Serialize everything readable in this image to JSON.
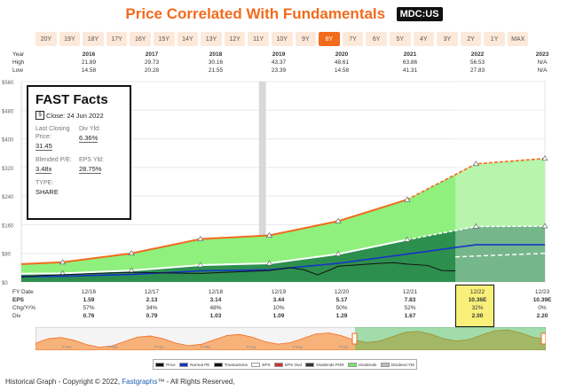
{
  "title": "Price Correlated With Fundamentals",
  "ticker": "MDC:US",
  "periods": [
    "20Y",
    "19Y",
    "18Y",
    "17Y",
    "16Y",
    "15Y",
    "14Y",
    "13Y",
    "12Y",
    "11Y",
    "10Y",
    "9Y",
    "8Y",
    "7Y",
    "6Y",
    "5Y",
    "4Y",
    "3Y",
    "2Y",
    "1Y",
    "MAX"
  ],
  "active_period": "8Y",
  "highlow": {
    "year_label": "Year",
    "high_label": "High",
    "low_label": "Low",
    "years": [
      "2016",
      "2017",
      "2018",
      "2019",
      "2020",
      "2021",
      "2022",
      "2023"
    ],
    "high": [
      "21.89",
      "29.73",
      "30.16",
      "43.37",
      "48.61",
      "63.86",
      "56.53",
      "N/A"
    ],
    "low": [
      "14.58",
      "20.28",
      "21.55",
      "23.39",
      "14.58",
      "41.31",
      "27.83",
      "N/A"
    ]
  },
  "facts": {
    "heading": "FAST Facts",
    "close": "Close: 24 Jun 2022",
    "last_price_label": "Last Closing Price:",
    "last_price": "31.45",
    "div_yld_label": "Div Yld:",
    "div_yld": "6.36%",
    "pe_label": "Blended P/E:",
    "pe": "3.48x",
    "eps_yld_label": "EPS Yld:",
    "eps_yld": "28.75%",
    "type_label": "TYPE:",
    "type": "SHARE"
  },
  "stats": {
    "fy_label": "FY Date",
    "eps_label": "EPS",
    "chg_label": "Chg/Yr%",
    "div_label": "Div",
    "dates": [
      "12/16",
      "12/17",
      "12/18",
      "12/19",
      "12/20",
      "12/21",
      "12/22",
      "12/23"
    ],
    "eps": [
      "1.59",
      "2.13",
      "3.14",
      "3.44",
      "5.17",
      "7.83",
      "10.36E",
      "10.39E"
    ],
    "chg": [
      "57%",
      "34%",
      "48%",
      "10%",
      "50%",
      "52%",
      "32%",
      "0%"
    ],
    "div": [
      "0.76",
      "0.79",
      "1.03",
      "1.09",
      "1.29",
      "1.67",
      "2.00",
      "2.20"
    ]
  },
  "legend": [
    "Price",
    "Normal PE",
    "Transactions",
    "EPS",
    "EPS Ovd",
    "Dividends POR",
    "Dividends",
    "Dividend YM"
  ],
  "nav_labels": [
    "FY91",
    "FY96",
    "FY01",
    "FY06",
    "FY11",
    "FY16",
    "FY21"
  ],
  "footer": {
    "prefix": "Historical Graph - Copyright © 2022,",
    "link": "Fastgraphs",
    "suffix": "™ - All Rights Reserved,"
  },
  "colors": {
    "accent": "#f26b1d",
    "eps_fill": "#1e8b45",
    "div_fill": "#7be36c",
    "price": "#111111",
    "normal_pe": "#1433c8"
  },
  "chart_data": {
    "type": "area",
    "y_ticks": [
      "$560",
      "$480",
      "$400",
      "$320",
      "$240",
      "$160",
      "$80",
      "$0"
    ],
    "ylim": [
      0,
      560
    ],
    "x": [
      2015.4,
      2016,
      2017,
      2018,
      2019,
      2020,
      2021,
      2022,
      2023
    ],
    "eps_valuation": [
      23,
      24,
      32,
      47,
      52,
      78,
      118,
      155,
      156
    ],
    "dividend_valuation": [
      50,
      55,
      80,
      120,
      130,
      170,
      230,
      330,
      345
    ],
    "normal_pe": [
      15,
      16,
      21,
      31,
      34,
      52,
      78,
      104,
      104
    ],
    "price": [
      [
        2015.4,
        14
      ],
      [
        2015.7,
        18
      ],
      [
        2016,
        20
      ],
      [
        2016.5,
        24
      ],
      [
        2017,
        27
      ],
      [
        2017.5,
        25
      ],
      [
        2018,
        24
      ],
      [
        2018.5,
        28
      ],
      [
        2019,
        32
      ],
      [
        2019.3,
        40
      ],
      [
        2019.5,
        34
      ],
      [
        2019.7,
        20
      ],
      [
        2019.9,
        35
      ],
      [
        2020,
        44
      ],
      [
        2020.3,
        48
      ],
      [
        2020.6,
        52
      ],
      [
        2020.8,
        54
      ],
      [
        2021,
        50
      ],
      [
        2021.3,
        46
      ],
      [
        2021.5,
        32
      ],
      [
        2021.7,
        31
      ]
    ],
    "estimate_start": 2021.7,
    "dividend_yield_line": [
      [
        2021.7,
        70
      ],
      [
        2023,
        80
      ]
    ],
    "grey_band": [
      2018.85,
      2018.95
    ]
  }
}
